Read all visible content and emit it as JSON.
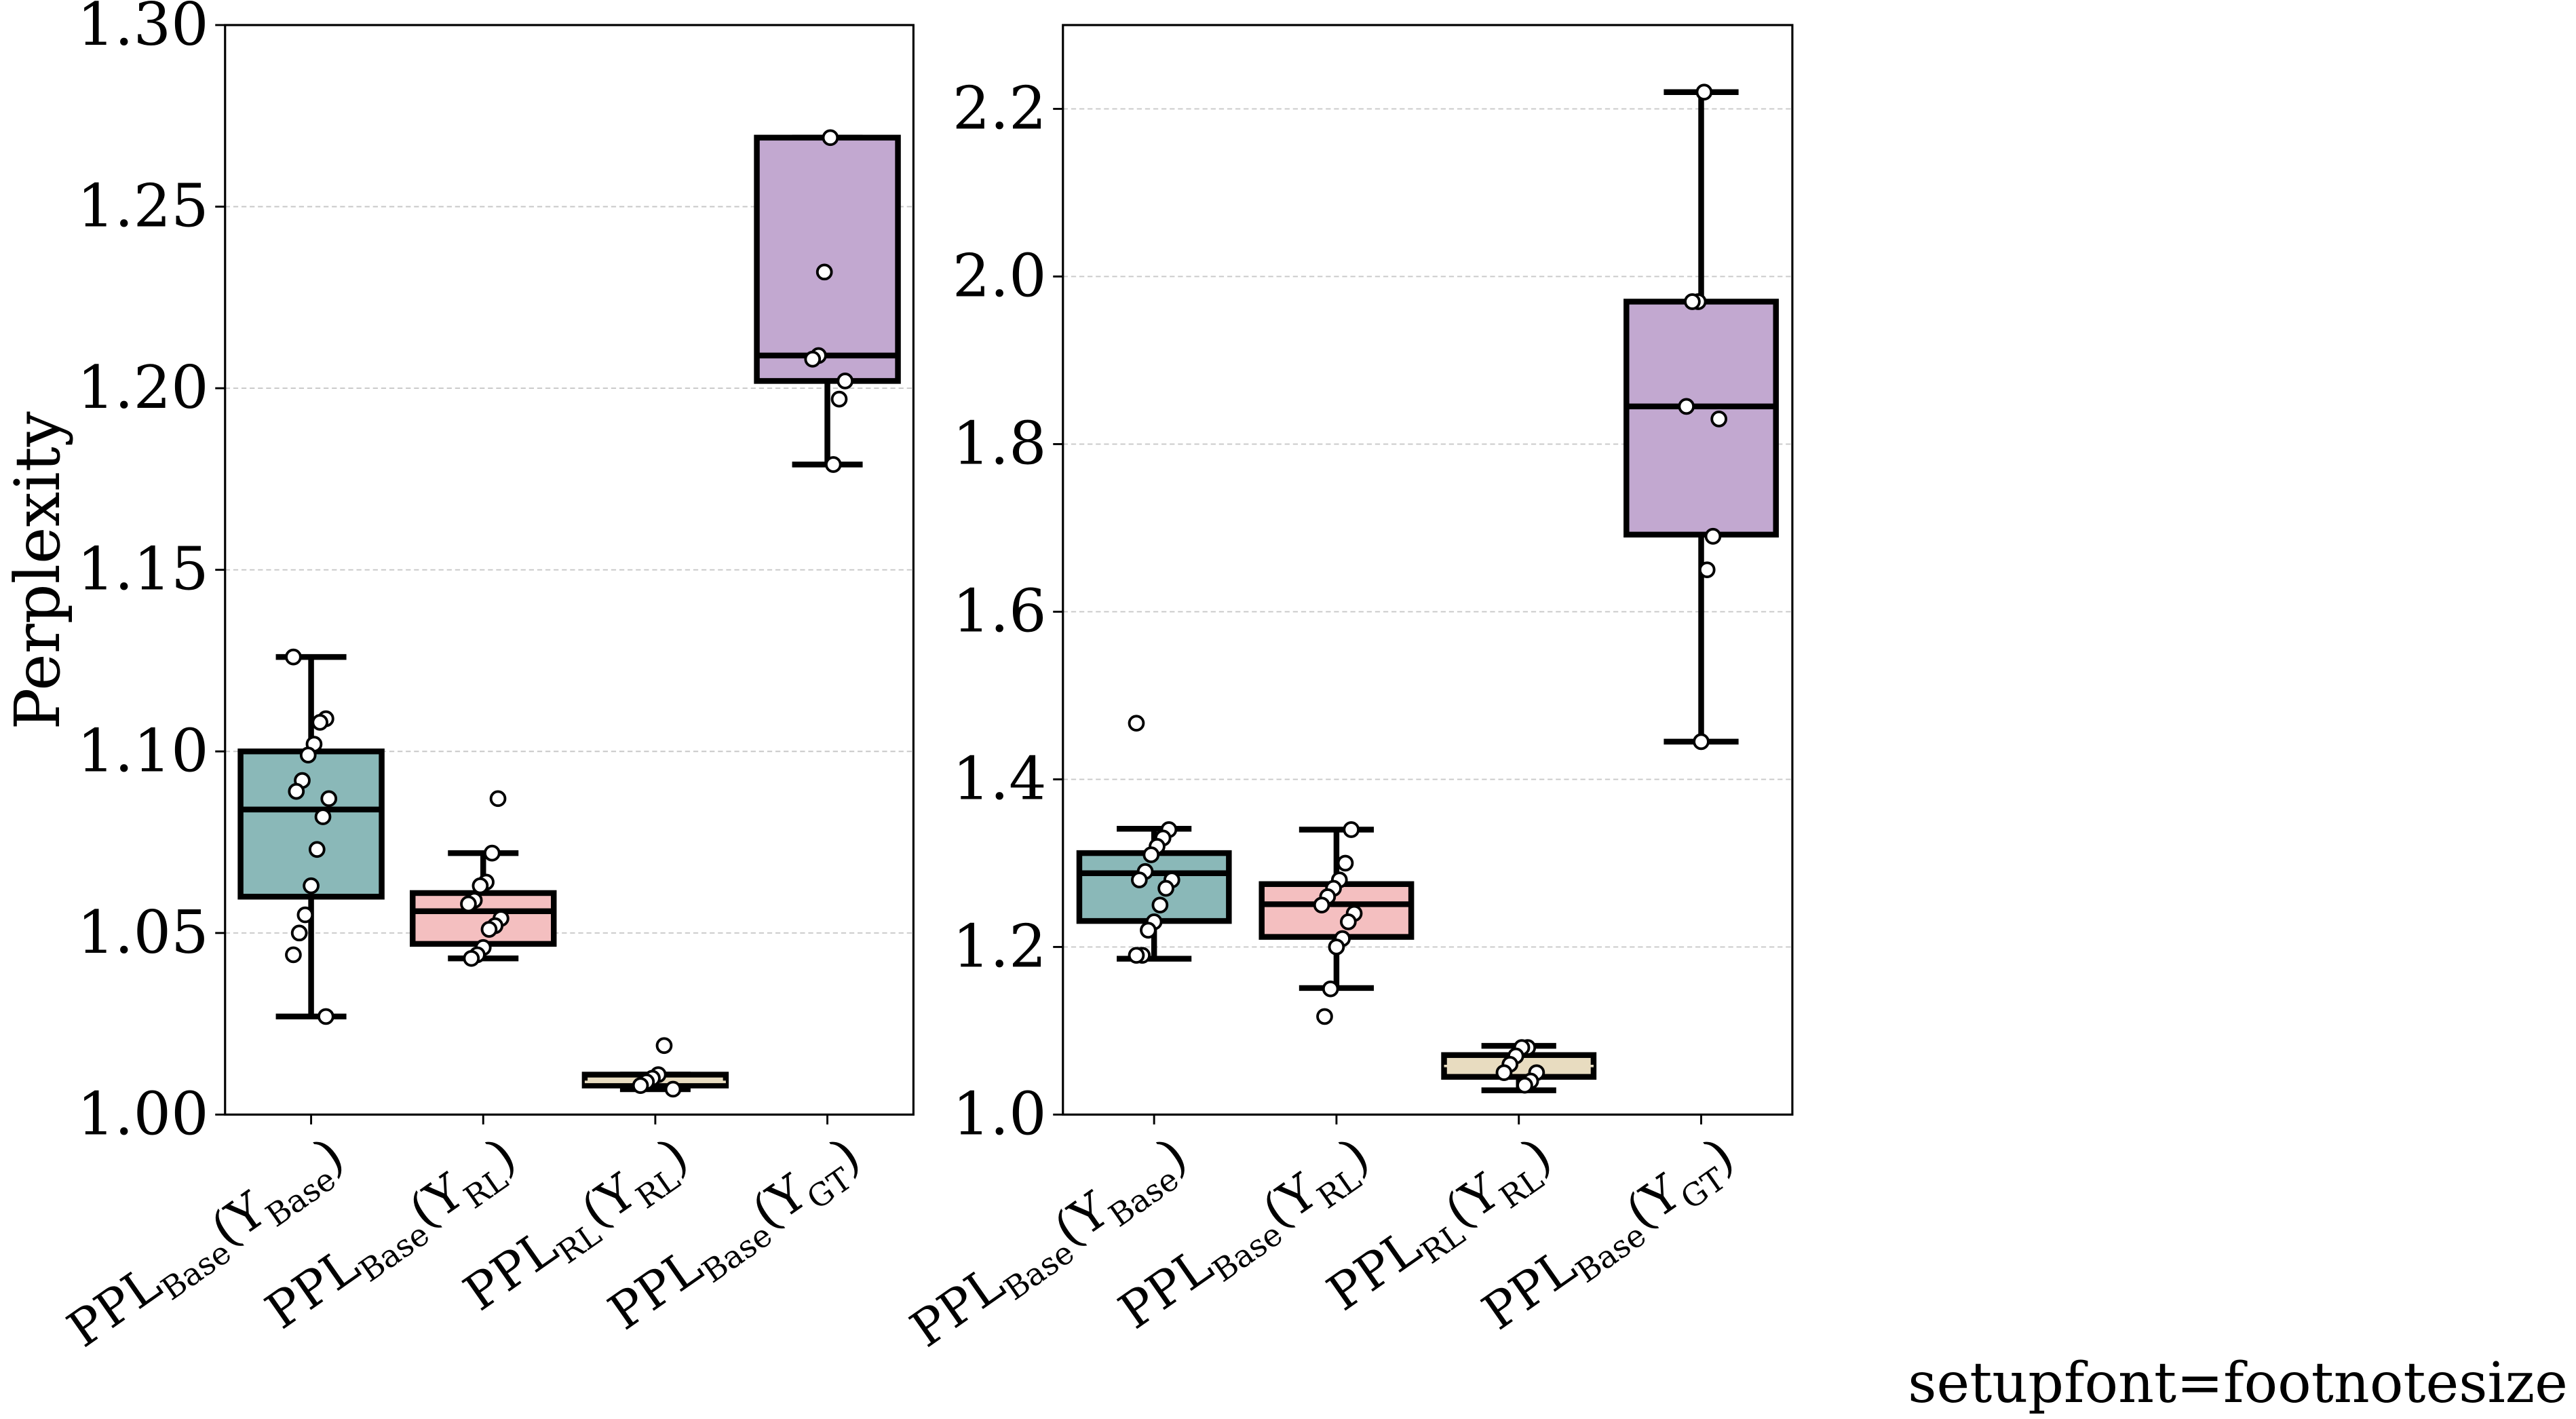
{
  "footer_text": "setupfont=footnotesize",
  "chart_data": [
    {
      "type": "box",
      "ylabel": "Perplexity",
      "ylim": [
        1.0,
        1.3
      ],
      "yticks": [
        "1.00",
        "1.05",
        "1.10",
        "1.15",
        "1.20",
        "1.25",
        "1.30"
      ],
      "grid": "horizontal dashed",
      "categories": [
        {
          "base": "PPL",
          "sub": "Base",
          "arg": "Y",
          "argsub": "Base"
        },
        {
          "base": "PPL",
          "sub": "Base",
          "arg": "Y",
          "argsub": "RL"
        },
        {
          "base": "PPL",
          "sub": "RL",
          "arg": "Y",
          "argsub": "RL"
        },
        {
          "base": "PPL",
          "sub": "Base",
          "arg": "Y",
          "argsub": "GT"
        }
      ],
      "boxes": [
        {
          "color": "#8ab8b8",
          "whisker_low": 1.027,
          "q1": 1.06,
          "median": 1.084,
          "q3": 1.1,
          "whisker_high": 1.126,
          "points": [
            1.126,
            1.109,
            1.108,
            1.102,
            1.099,
            1.092,
            1.089,
            1.087,
            1.082,
            1.073,
            1.063,
            1.055,
            1.05,
            1.044,
            1.027
          ]
        },
        {
          "color": "#f4bfc0",
          "whisker_low": 1.043,
          "q1": 1.047,
          "median": 1.056,
          "q3": 1.061,
          "whisker_high": 1.072,
          "points": [
            1.087,
            1.072,
            1.064,
            1.063,
            1.059,
            1.058,
            1.054,
            1.052,
            1.051,
            1.046,
            1.044,
            1.043
          ]
        },
        {
          "color": "#e8dcc0",
          "whisker_low": 1.007,
          "q1": 1.008,
          "median": 1.009,
          "q3": 1.011,
          "whisker_high": 1.011,
          "points": [
            1.019,
            1.011,
            1.01,
            1.009,
            1.008,
            1.007
          ]
        },
        {
          "color": "#c2a8d0",
          "whisker_low": 1.179,
          "q1": 1.202,
          "median": 1.209,
          "q3": 1.269,
          "whisker_high": 1.269,
          "points": [
            1.269,
            1.232,
            1.209,
            1.208,
            1.202,
            1.197,
            1.179
          ]
        }
      ]
    },
    {
      "type": "box",
      "ylabel": "",
      "ylim": [
        1.0,
        2.3
      ],
      "yticks": [
        "1.0",
        "1.2",
        "1.4",
        "1.6",
        "1.8",
        "2.0",
        "2.2"
      ],
      "grid": "horizontal dashed",
      "categories": [
        {
          "base": "PPL",
          "sub": "Base",
          "arg": "Y",
          "argsub": "Base"
        },
        {
          "base": "PPL",
          "sub": "Base",
          "arg": "Y",
          "argsub": "RL"
        },
        {
          "base": "PPL",
          "sub": "RL",
          "arg": "Y",
          "argsub": "RL"
        },
        {
          "base": "PPL",
          "sub": "Base",
          "arg": "Y",
          "argsub": "GT"
        }
      ],
      "boxes": [
        {
          "color": "#8ab8b8",
          "whisker_low": 1.186,
          "q1": 1.231,
          "median": 1.288,
          "q3": 1.312,
          "whisker_high": 1.341,
          "points": [
            1.467,
            1.34,
            1.33,
            1.32,
            1.31,
            1.29,
            1.28,
            1.28,
            1.27,
            1.25,
            1.23,
            1.22,
            1.19,
            1.19
          ]
        },
        {
          "color": "#f4bfc0",
          "whisker_low": 1.151,
          "q1": 1.212,
          "median": 1.251,
          "q3": 1.275,
          "whisker_high": 1.34,
          "points": [
            1.34,
            1.3,
            1.28,
            1.27,
            1.26,
            1.25,
            1.24,
            1.23,
            1.21,
            1.2,
            1.15,
            1.117
          ]
        },
        {
          "color": "#e8dcc0",
          "whisker_low": 1.029,
          "q1": 1.045,
          "median": 1.058,
          "q3": 1.071,
          "whisker_high": 1.082,
          "points": [
            1.08,
            1.08,
            1.07,
            1.06,
            1.05,
            1.05,
            1.04,
            1.035
          ]
        },
        {
          "color": "#c2a8d0",
          "whisker_low": 1.445,
          "q1": 1.692,
          "median": 1.845,
          "q3": 1.97,
          "whisker_high": 2.22,
          "points": [
            2.22,
            1.97,
            1.97,
            1.845,
            1.83,
            1.69,
            1.65,
            1.445
          ]
        }
      ]
    }
  ]
}
